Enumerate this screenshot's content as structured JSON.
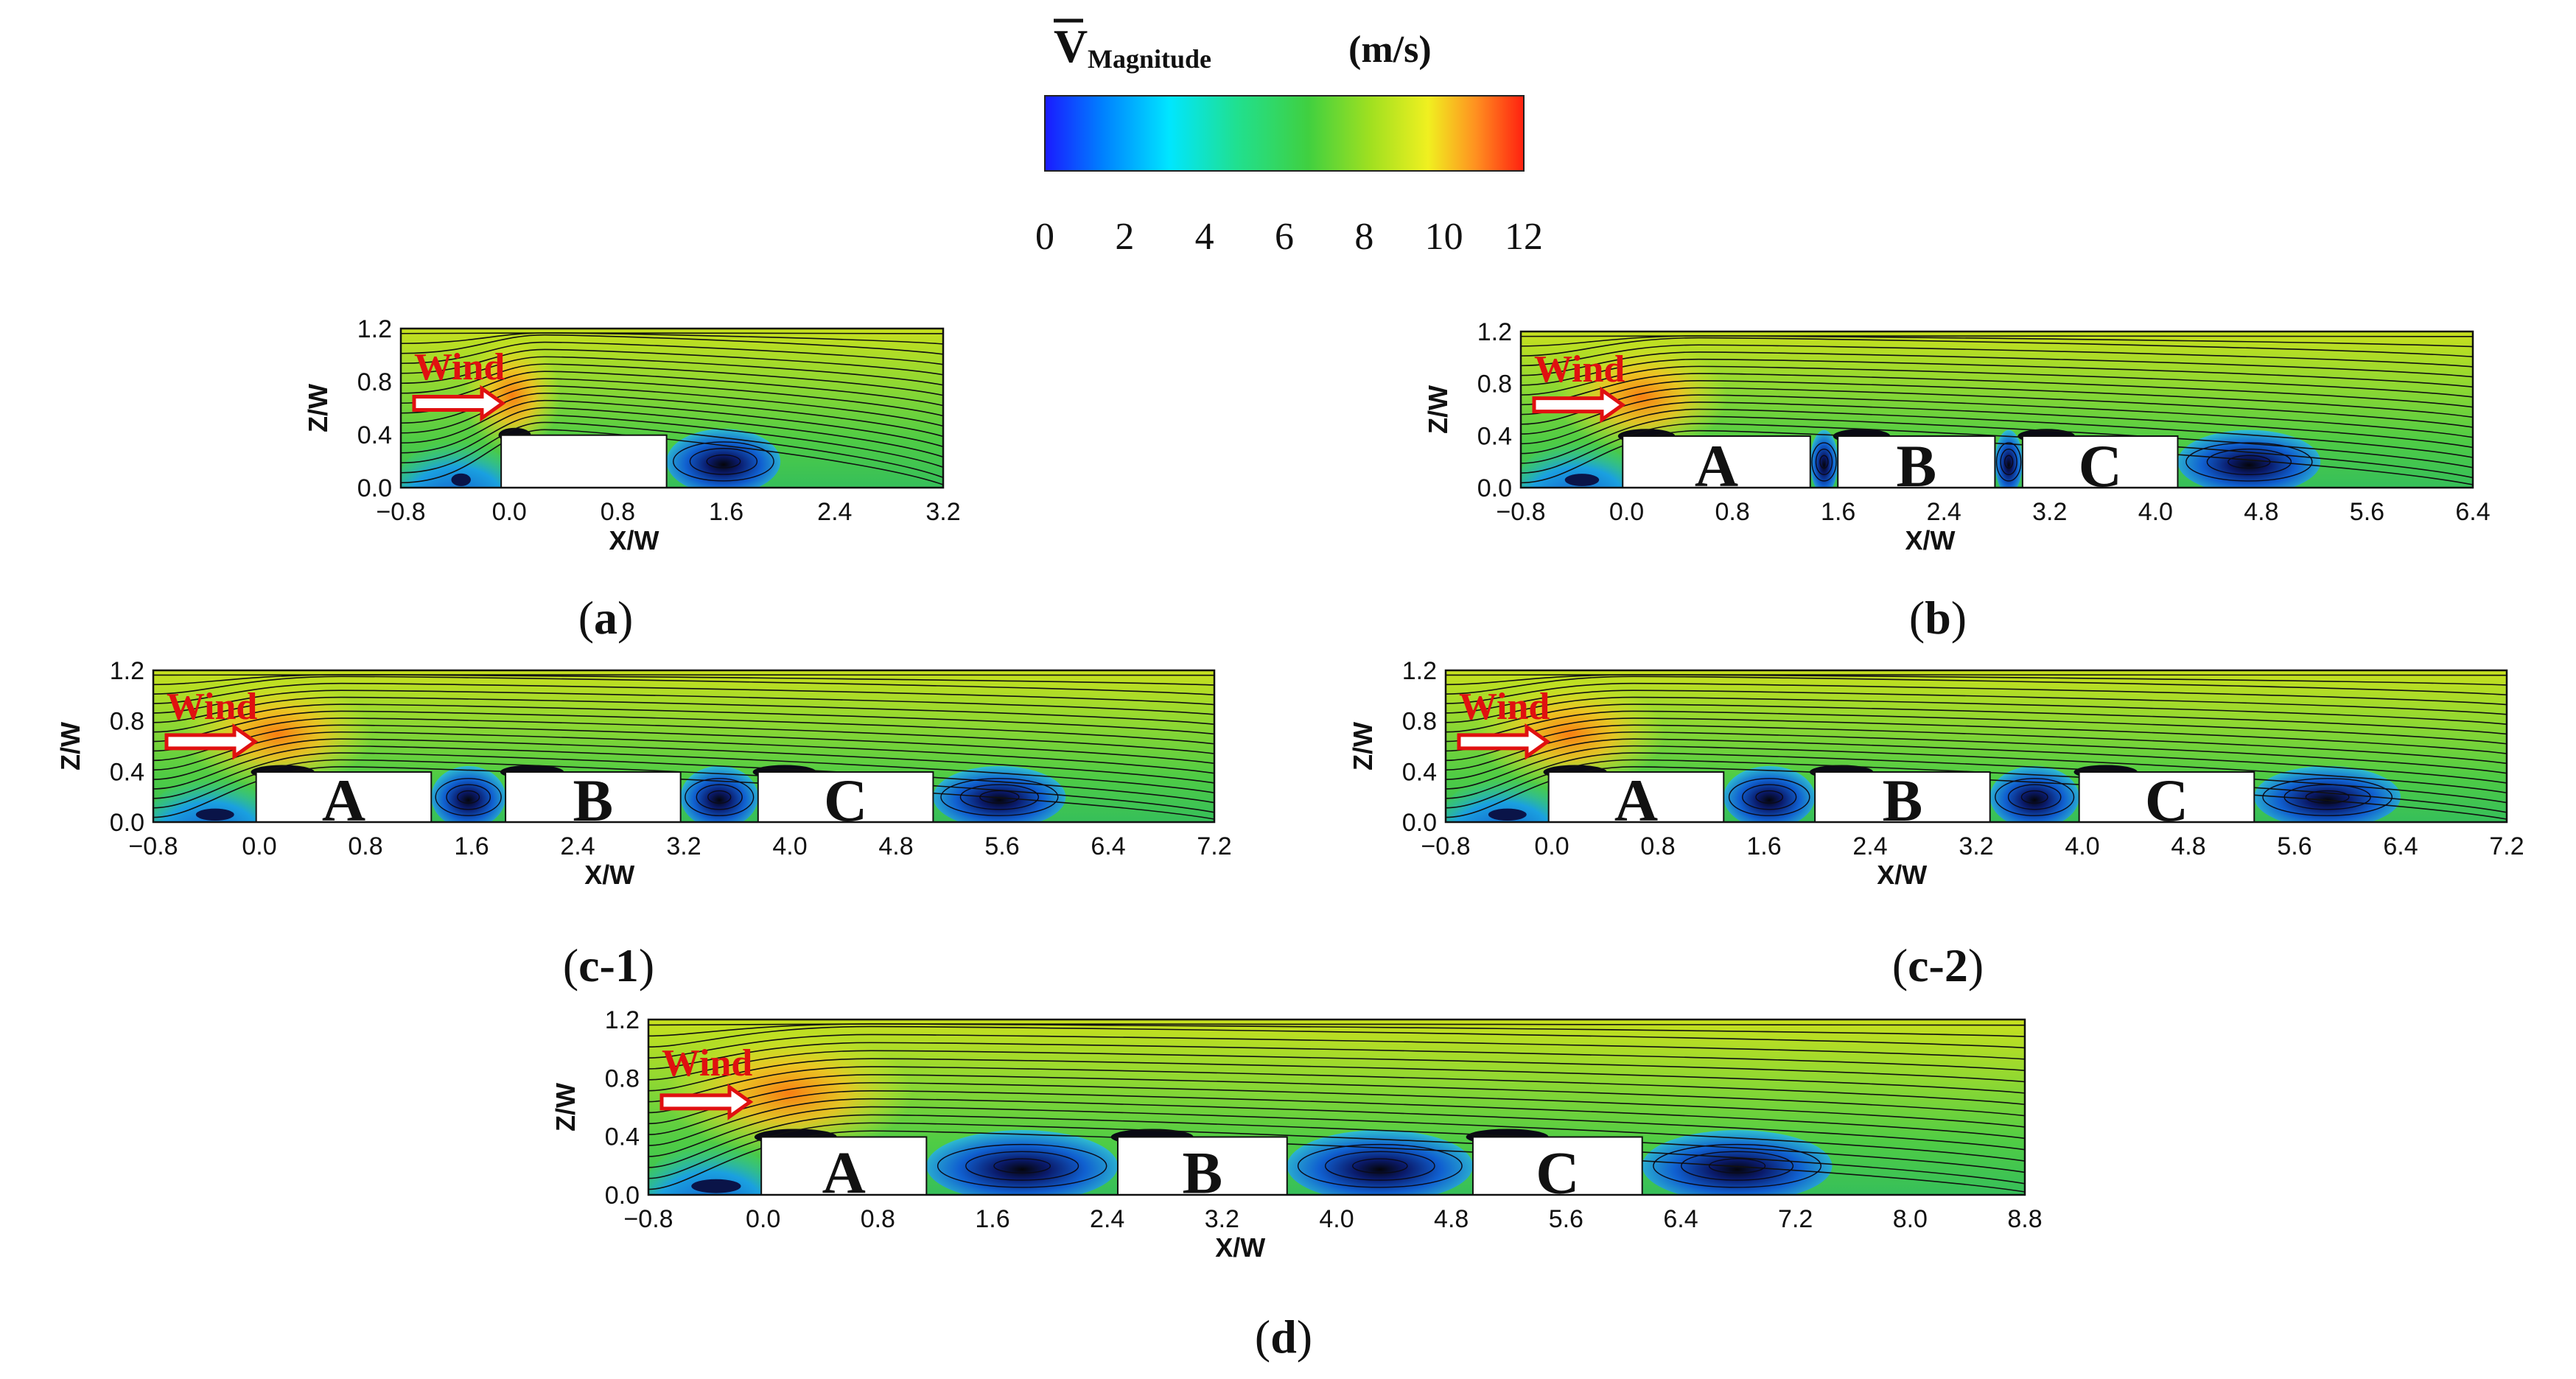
{
  "colorbar": {
    "symbol": "V",
    "subscript": "Magnitude",
    "unit": "(m/s)",
    "ticks": [
      "0",
      "2",
      "4",
      "6",
      "8",
      "10",
      "12"
    ],
    "colors": [
      "#1a1aff",
      "#0080ff",
      "#00e6ff",
      "#20e090",
      "#40d040",
      "#a0e020",
      "#f0f020",
      "#ff9020",
      "#ff2010"
    ]
  },
  "wind_label": "Wind",
  "panels": [
    {
      "id": "a",
      "caption_open": "(",
      "caption_letter": "a",
      "caption_close": ")",
      "xlabel": "X/W",
      "ylabel": "Z/W",
      "xticks": [
        "−0.8",
        "0.0",
        "0.8",
        "1.6",
        "2.4",
        "3.2"
      ],
      "yticks": [
        "0.0",
        "0.4",
        "0.8",
        "1.2"
      ],
      "buildings": [
        {
          "label": ""
        }
      ]
    },
    {
      "id": "b",
      "caption_open": "(",
      "caption_letter": "b",
      "caption_close": ")",
      "xlabel": "X/W",
      "ylabel": "Z/W",
      "xticks": [
        "−0.8",
        "0.0",
        "0.8",
        "1.6",
        "2.4",
        "3.2",
        "4.0",
        "4.8",
        "5.6",
        "6.4"
      ],
      "yticks": [
        "0.0",
        "0.4",
        "0.8",
        "1.2"
      ],
      "buildings": [
        {
          "label": "A"
        },
        {
          "label": "B"
        },
        {
          "label": "C"
        }
      ]
    },
    {
      "id": "c1",
      "caption_open": "(",
      "caption_letter": "c-1",
      "caption_close": ")",
      "xlabel": "X/W",
      "ylabel": "Z/W",
      "xticks": [
        "−0.8",
        "0.0",
        "0.8",
        "1.6",
        "2.4",
        "3.2",
        "4.0",
        "4.8",
        "5.6",
        "6.4",
        "7.2"
      ],
      "yticks": [
        "0.0",
        "0.4",
        "0.8",
        "1.2"
      ],
      "buildings": [
        {
          "label": "A"
        },
        {
          "label": "B"
        },
        {
          "label": "C"
        }
      ]
    },
    {
      "id": "c2",
      "caption_open": "(",
      "caption_letter": "c-2",
      "caption_close": ")",
      "xlabel": "X/W",
      "ylabel": "Z/W",
      "xticks": [
        "−0.8",
        "0.0",
        "0.8",
        "1.6",
        "2.4",
        "3.2",
        "4.0",
        "4.8",
        "5.6",
        "6.4",
        "7.2"
      ],
      "yticks": [
        "0.0",
        "0.4",
        "0.8",
        "1.2"
      ],
      "buildings": [
        {
          "label": "A"
        },
        {
          "label": "B"
        },
        {
          "label": "C"
        }
      ]
    },
    {
      "id": "d",
      "caption_open": "(",
      "caption_letter": "d",
      "caption_close": ")",
      "xlabel": "X/W",
      "ylabel": "Z/W",
      "xticks": [
        "−0.8",
        "0.0",
        "0.8",
        "1.6",
        "2.4",
        "3.2",
        "4.0",
        "4.8",
        "5.6",
        "6.4",
        "7.2",
        "8.0",
        "8.8"
      ],
      "yticks": [
        "0.0",
        "0.4",
        "0.8",
        "1.2"
      ],
      "buildings": [
        {
          "label": "A"
        },
        {
          "label": "B"
        },
        {
          "label": "C"
        }
      ]
    }
  ]
}
